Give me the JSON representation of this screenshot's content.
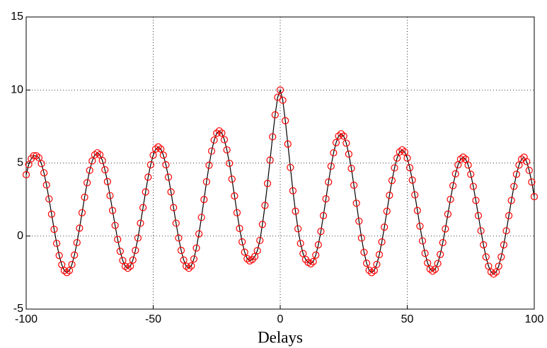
{
  "chart_data": {
    "type": "line",
    "xlabel": "Delays",
    "x": [
      -100,
      -99,
      -98,
      -97,
      -96,
      -95,
      -94,
      -93,
      -92,
      -91,
      -90,
      -89,
      -88,
      -87,
      -86,
      -85,
      -84,
      -83,
      -82,
      -81,
      -80,
      -79,
      -78,
      -77,
      -76,
      -75,
      -74,
      -73,
      -72,
      -71,
      -70,
      -69,
      -68,
      -67,
      -66,
      -65,
      -64,
      -63,
      -62,
      -61,
      -60,
      -59,
      -58,
      -57,
      -56,
      -55,
      -54,
      -53,
      -52,
      -51,
      -50,
      -49,
      -48,
      -47,
      -46,
      -45,
      -44,
      -43,
      -42,
      -41,
      -40,
      -39,
      -38,
      -37,
      -36,
      -35,
      -34,
      -33,
      -32,
      -31,
      -30,
      -29,
      -28,
      -27,
      -26,
      -25,
      -24,
      -23,
      -22,
      -21,
      -20,
      -19,
      -18,
      -17,
      -16,
      -15,
      -14,
      -13,
      -12,
      -11,
      -10,
      -9,
      -8,
      -7,
      -6,
      -5,
      -4,
      -3,
      -2,
      -1,
      0,
      1,
      2,
      3,
      4,
      5,
      6,
      7,
      8,
      9,
      10,
      11,
      12,
      13,
      14,
      15,
      16,
      17,
      18,
      19,
      20,
      21,
      22,
      23,
      24,
      25,
      26,
      27,
      28,
      29,
      30,
      31,
      32,
      33,
      34,
      35,
      36,
      37,
      38,
      39,
      40,
      41,
      42,
      43,
      44,
      45,
      46,
      47,
      48,
      49,
      50,
      51,
      52,
      53,
      54,
      55,
      56,
      57,
      58,
      59,
      60,
      61,
      62,
      63,
      64,
      65,
      66,
      67,
      68,
      69,
      70,
      71,
      72,
      73,
      74,
      75,
      76,
      77,
      78,
      79,
      80,
      81,
      82,
      83,
      84,
      85,
      86,
      87,
      88,
      89,
      90,
      91,
      92,
      93,
      94,
      95,
      96,
      97,
      98,
      99,
      100
    ],
    "series": [
      {
        "color": "#000000",
        "marker_color": "#ff0000",
        "values": [
          4.2,
          4.9,
          5.3,
          5.5,
          5.5,
          5.36,
          4.96,
          4.33,
          3.5,
          2.54,
          1.5,
          0.46,
          -0.5,
          -1.33,
          -1.96,
          -2.36,
          -2.5,
          -2.36,
          -1.95,
          -1.3,
          -0.45,
          0.54,
          1.6,
          2.66,
          3.65,
          4.5,
          5.15,
          5.56,
          5.7,
          5.57,
          5.17,
          4.54,
          3.73,
          2.77,
          1.75,
          0.73,
          -0.23,
          -1.04,
          -1.67,
          -2.07,
          -2.2,
          -2.06,
          -1.64,
          -0.98,
          -0.13,
          0.88,
          1.95,
          3.02,
          4.03,
          4.88,
          5.54,
          5.96,
          6.1,
          5.96,
          5.54,
          4.88,
          4.03,
          3.02,
          1.95,
          0.88,
          -0.13,
          -0.98,
          -1.64,
          -2.06,
          -2.2,
          -2.04,
          -1.57,
          -0.82,
          0.15,
          1.28,
          2.5,
          3.72,
          4.85,
          5.82,
          6.57,
          7.04,
          7.2,
          7.05,
          6.6,
          5.9,
          4.98,
          3.9,
          2.75,
          1.6,
          0.52,
          -0.4,
          -1.1,
          -1.55,
          -1.7,
          -1.6,
          -1.4,
          -1.0,
          -0.3,
          0.8,
          2.1,
          3.6,
          5.2,
          6.8,
          8.3,
          9.5,
          10,
          9.3,
          7.9,
          6.3,
          4.7,
          3.1,
          1.7,
          0.5,
          -0.5,
          -1.2,
          -1.6,
          -1.8,
          -1.9,
          -1.75,
          -1.3,
          -0.6,
          0.32,
          1.4,
          2.55,
          3.7,
          4.78,
          5.7,
          6.4,
          6.85,
          7.0,
          6.84,
          6.36,
          5.61,
          4.63,
          3.48,
          2.25,
          1.02,
          -0.13,
          -1.11,
          -1.86,
          -2.34,
          -2.5,
          -2.36,
          -1.94,
          -1.27,
          -0.4,
          0.61,
          1.7,
          2.79,
          3.8,
          4.67,
          5.34,
          5.76,
          5.9,
          5.76,
          5.34,
          4.68,
          3.83,
          2.82,
          1.75,
          0.68,
          -0.33,
          -1.18,
          -1.84,
          -2.26,
          -2.4,
          -2.27,
          -1.88,
          -1.26,
          -0.45,
          0.49,
          1.5,
          2.51,
          3.45,
          4.26,
          4.88,
          5.27,
          5.4,
          5.26,
          4.86,
          4.23,
          3.4,
          2.44,
          1.4,
          0.36,
          -0.6,
          -1.43,
          -2.06,
          -2.46,
          -2.6,
          -2.46,
          -2.06,
          -1.43,
          -0.6,
          0.36,
          1.4,
          2.44,
          3.4,
          4.23,
          4.86,
          5.26,
          5.4,
          5.1,
          4.5,
          3.7,
          2.7
        ]
      }
    ],
    "xlim": [
      -100,
      100
    ],
    "xticks": [
      -100,
      -50,
      0,
      50,
      100
    ],
    "ylim": [
      -5,
      15
    ],
    "yticks": [
      -5,
      0,
      5,
      10,
      15
    ],
    "grid": true
  }
}
